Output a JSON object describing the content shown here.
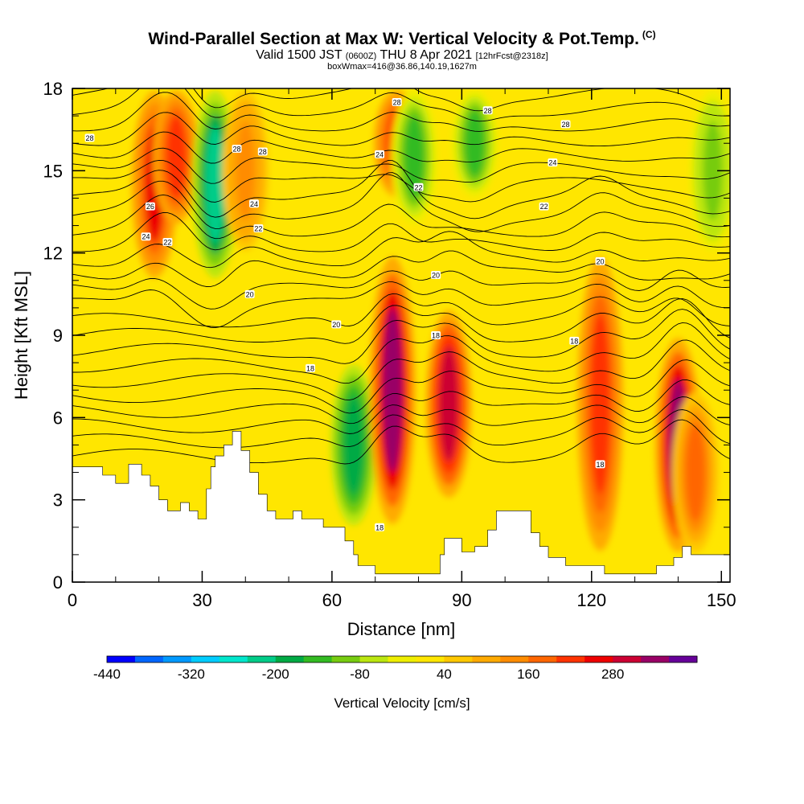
{
  "title": {
    "main": "Wind-Parallel Section at Max W: Vertical Velocity & Pot.Temp.",
    "copyright": "(C)",
    "valid_prefix": "Valid 1500 JST",
    "valid_utc": "(0600Z)",
    "valid_date": "THU 8 Apr 2021",
    "forecast": "[12hrFcst@2318z]",
    "boxwmax": "boxWmax=416@36.86,140.19,1627m"
  },
  "chart_data": {
    "type": "heatmap",
    "xlabel": "Distance [nm]",
    "ylabel": "Height [Kft MSL]",
    "xlim": [
      0,
      152
    ],
    "ylim": [
      0,
      18
    ],
    "x_ticks": [
      0,
      30,
      60,
      90,
      120,
      150
    ],
    "y_ticks": [
      0,
      3,
      6,
      9,
      12,
      15,
      18
    ],
    "colorbar": {
      "label": "Vertical Velocity [cm/s]",
      "tick_labels": [
        "-440",
        "-320",
        "-200",
        "-80",
        "40",
        "160",
        "280"
      ],
      "tick_values": [
        -440,
        -320,
        -200,
        -80,
        40,
        160,
        280
      ],
      "min": -440,
      "step": 40,
      "colors": [
        "#0000ff",
        "#0066ff",
        "#0099ff",
        "#00ccff",
        "#00e6cc",
        "#00cc88",
        "#00aa44",
        "#33bb22",
        "#77cc11",
        "#bbe610",
        "#eeee00",
        "#ffe600",
        "#ffc800",
        "#ffaa00",
        "#ff8c00",
        "#ff6600",
        "#ff3300",
        "#ee0000",
        "#cc0033",
        "#990066",
        "#660099"
      ]
    },
    "vertical_velocity_cells": [
      {
        "x": 19,
        "zb": 11,
        "zt": 18,
        "v": 240
      },
      {
        "x": 24,
        "zb": 13,
        "zt": 18,
        "v": 200
      },
      {
        "x": 33,
        "zb": 11,
        "zt": 18,
        "v": -220
      },
      {
        "x": 40,
        "zb": 12,
        "zt": 18,
        "v": 140
      },
      {
        "x": 65,
        "zb": 2,
        "zt": 8,
        "v": -200
      },
      {
        "x": 74,
        "zb": 2,
        "zt": 12,
        "v": 330
      },
      {
        "x": 75,
        "zb": 14,
        "zt": 18,
        "v": 220
      },
      {
        "x": 79,
        "zb": 13,
        "zt": 18,
        "v": -140
      },
      {
        "x": 87,
        "zb": 3,
        "zt": 10,
        "v": 300
      },
      {
        "x": 93,
        "zb": 14,
        "zt": 18,
        "v": -160
      },
      {
        "x": 122,
        "zb": 1,
        "zt": 12,
        "v": 220
      },
      {
        "x": 140,
        "zb": 1,
        "zt": 9,
        "v": 340
      },
      {
        "x": 144,
        "zb": 1,
        "zt": 7,
        "v": 180
      },
      {
        "x": 148,
        "zb": 12,
        "zt": 18,
        "v": -100
      }
    ],
    "terrain_kft": [
      [
        0,
        4.2
      ],
      [
        7,
        4.2
      ],
      [
        7,
        3.9
      ],
      [
        10,
        3.9
      ],
      [
        10,
        3.6
      ],
      [
        13,
        3.6
      ],
      [
        13,
        4.3
      ],
      [
        16,
        4.3
      ],
      [
        16,
        3.9
      ],
      [
        18,
        3.9
      ],
      [
        18,
        3.5
      ],
      [
        20,
        3.5
      ],
      [
        20,
        3.0
      ],
      [
        22,
        3.0
      ],
      [
        22,
        2.6
      ],
      [
        25,
        2.6
      ],
      [
        25,
        2.9
      ],
      [
        27,
        2.9
      ],
      [
        27,
        2.6
      ],
      [
        29,
        2.6
      ],
      [
        29,
        2.3
      ],
      [
        31,
        2.3
      ],
      [
        31,
        3.4
      ],
      [
        32,
        3.4
      ],
      [
        32,
        4.2
      ],
      [
        33,
        4.2
      ],
      [
        33,
        4.6
      ],
      [
        35,
        4.6
      ],
      [
        35,
        5.0
      ],
      [
        37,
        5.0
      ],
      [
        37,
        5.5
      ],
      [
        39,
        5.5
      ],
      [
        39,
        4.8
      ],
      [
        41,
        4.8
      ],
      [
        41,
        4.0
      ],
      [
        43,
        4.0
      ],
      [
        43,
        3.2
      ],
      [
        45,
        3.2
      ],
      [
        45,
        2.6
      ],
      [
        47,
        2.6
      ],
      [
        47,
        2.3
      ],
      [
        51,
        2.3
      ],
      [
        51,
        2.6
      ],
      [
        53,
        2.6
      ],
      [
        53,
        2.3
      ],
      [
        58,
        2.3
      ],
      [
        58,
        2.0
      ],
      [
        63,
        2.0
      ],
      [
        63,
        1.5
      ],
      [
        65,
        1.5
      ],
      [
        65,
        1.0
      ],
      [
        66,
        1.0
      ],
      [
        66,
        0.6
      ],
      [
        70,
        0.6
      ],
      [
        70,
        0.3
      ],
      [
        77,
        0.3
      ],
      [
        77,
        0.3
      ],
      [
        85,
        0.3
      ],
      [
        85,
        1.0
      ],
      [
        86,
        1.0
      ],
      [
        86,
        1.6
      ],
      [
        90,
        1.6
      ],
      [
        90,
        1.1
      ],
      [
        93,
        1.1
      ],
      [
        93,
        1.3
      ],
      [
        96,
        1.3
      ],
      [
        96,
        1.9
      ],
      [
        98,
        1.9
      ],
      [
        98,
        2.6
      ],
      [
        106,
        2.6
      ],
      [
        106,
        1.8
      ],
      [
        108,
        1.8
      ],
      [
        108,
        1.3
      ],
      [
        110,
        1.3
      ],
      [
        110,
        0.9
      ],
      [
        114,
        0.9
      ],
      [
        114,
        0.6
      ],
      [
        123,
        0.6
      ],
      [
        123,
        0.3
      ],
      [
        135,
        0.3
      ],
      [
        135,
        0.6
      ],
      [
        139,
        0.6
      ],
      [
        139,
        0.9
      ],
      [
        141,
        0.9
      ],
      [
        141,
        1.3
      ],
      [
        143,
        1.3
      ],
      [
        143,
        1.0
      ],
      [
        152,
        1.0
      ]
    ],
    "theta_contour_labels": [
      {
        "text": "28",
        "x": 4,
        "z": 16.2
      },
      {
        "text": "28",
        "x": 38,
        "z": 15.8
      },
      {
        "text": "28",
        "x": 44,
        "z": 15.7
      },
      {
        "text": "28",
        "x": 75,
        "z": 17.5
      },
      {
        "text": "28",
        "x": 96,
        "z": 17.2
      },
      {
        "text": "28",
        "x": 114,
        "z": 16.7
      },
      {
        "text": "26",
        "x": 18,
        "z": 13.7
      },
      {
        "text": "24",
        "x": 17,
        "z": 12.6
      },
      {
        "text": "22",
        "x": 22,
        "z": 12.4
      },
      {
        "text": "24",
        "x": 42,
        "z": 13.8
      },
      {
        "text": "22",
        "x": 43,
        "z": 12.9
      },
      {
        "text": "24",
        "x": 71,
        "z": 15.6
      },
      {
        "text": "22",
        "x": 80,
        "z": 14.4
      },
      {
        "text": "24",
        "x": 111,
        "z": 15.3
      },
      {
        "text": "22",
        "x": 109,
        "z": 13.7
      },
      {
        "text": "20",
        "x": 41,
        "z": 10.5
      },
      {
        "text": "20",
        "x": 61,
        "z": 9.4
      },
      {
        "text": "20",
        "x": 84,
        "z": 11.2
      },
      {
        "text": "20",
        "x": 122,
        "z": 11.7
      },
      {
        "text": "18",
        "x": 55,
        "z": 7.8
      },
      {
        "text": "18",
        "x": 84,
        "z": 9.0
      },
      {
        "text": "18",
        "x": 116,
        "z": 8.8
      },
      {
        "text": "18",
        "x": 71,
        "z": 2.0
      },
      {
        "text": "18",
        "x": 122,
        "z": 4.3
      }
    ]
  }
}
